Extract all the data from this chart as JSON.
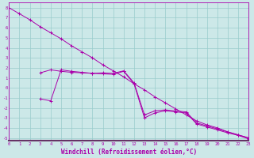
{
  "background_color": "#cce8e8",
  "grid_color": "#99cccc",
  "line_color": "#aa00aa",
  "xlabel": "Windchill (Refroidissement éolien,°C)",
  "xlabel_fontsize": 5.5,
  "xtick_labels": [
    "0",
    "1",
    "2",
    "3",
    "4",
    "5",
    "6",
    "7",
    "8",
    "9",
    "10",
    "11",
    "12",
    "13",
    "14",
    "15",
    "16",
    "17",
    "18",
    "19",
    "20",
    "21",
    "22",
    "23"
  ],
  "ytick_values": [
    -5,
    -4,
    -3,
    -2,
    -1,
    0,
    1,
    2,
    3,
    4,
    5,
    6,
    7,
    8
  ],
  "xlim": [
    0,
    23
  ],
  "ylim": [
    -5.3,
    8.5
  ],
  "series1_x": [
    0,
    1,
    2,
    3,
    4,
    5,
    6,
    7,
    8,
    9,
    10,
    11,
    12,
    13,
    14,
    15,
    16,
    17,
    18,
    19,
    20,
    21,
    22,
    23
  ],
  "series1_y": [
    8.0,
    7.4,
    6.8,
    6.1,
    5.5,
    4.9,
    4.2,
    3.6,
    3.0,
    2.3,
    1.7,
    1.1,
    0.4,
    -0.2,
    -0.9,
    -1.5,
    -2.1,
    -2.7,
    -3.3,
    -3.7,
    -4.0,
    -4.4,
    -4.7,
    -5.0
  ],
  "series2_x": [
    3,
    4,
    5,
    6,
    7,
    8,
    9,
    10,
    11,
    12,
    13,
    14,
    15,
    16,
    17,
    18,
    19,
    20,
    21,
    22,
    23
  ],
  "series2_y": [
    1.5,
    1.8,
    1.65,
    1.55,
    1.5,
    1.45,
    1.5,
    1.45,
    1.7,
    0.5,
    -2.7,
    -2.3,
    -2.2,
    -2.3,
    -2.4,
    -3.5,
    -3.8,
    -4.1,
    -4.4,
    -4.7,
    -5.0
  ],
  "series3_x": [
    3,
    4,
    5,
    6,
    7,
    8,
    9,
    10,
    11,
    12,
    13,
    14,
    15,
    16,
    17,
    18,
    19,
    20,
    21,
    22,
    23
  ],
  "series3_y": [
    -1.1,
    -1.3,
    1.8,
    1.65,
    1.55,
    1.45,
    1.4,
    1.35,
    1.65,
    0.4,
    -3.0,
    -2.5,
    -2.3,
    -2.4,
    -2.5,
    -3.6,
    -3.9,
    -4.2,
    -4.5,
    -4.75,
    -5.1
  ]
}
